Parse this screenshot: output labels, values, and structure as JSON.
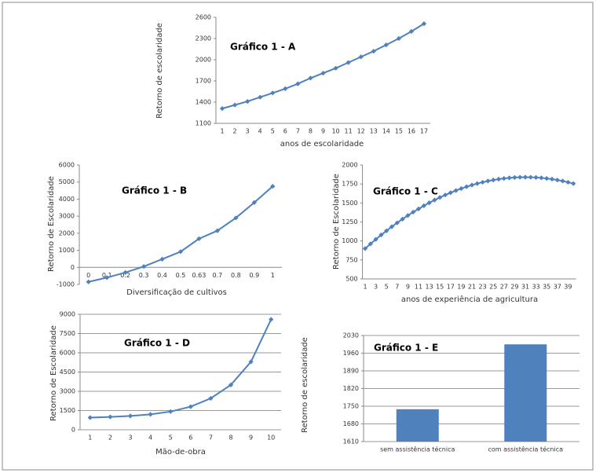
{
  "chart_data": [
    {
      "type": "line",
      "title": "Gráfico 1 - A",
      "y_label": "Retorno de escolaridade",
      "x_label": "anos de escolaridade",
      "categories": [
        "1",
        "2",
        "3",
        "4",
        "5",
        "6",
        "7",
        "8",
        "9",
        "10",
        "11",
        "12",
        "13",
        "14",
        "15",
        "16",
        "17"
      ],
      "values": [
        1310,
        1360,
        1410,
        1470,
        1530,
        1590,
        1660,
        1740,
        1810,
        1880,
        1960,
        2040,
        2120,
        2210,
        2300,
        2400,
        2510
      ],
      "color": "#4f81bd",
      "ylim": [
        1100,
        2600
      ],
      "yticks": [
        1100,
        1400,
        1700,
        2000,
        2300,
        2600
      ],
      "grid": false
    },
    {
      "type": "line",
      "title": "Gráfico 1 - B",
      "y_label": "Retorno de Escolaridade",
      "x_label": "Diversificação de cultivos",
      "categories": [
        "0",
        "0.1",
        "0.2",
        "0.3",
        "0.4",
        "0.5",
        "0.63",
        "0.7",
        "0.8",
        "0.9",
        "1"
      ],
      "values": [
        -850,
        -600,
        -300,
        50,
        480,
        920,
        1680,
        2150,
        2900,
        3800,
        4750
      ],
      "color": "#4f81bd",
      "ylim": [
        -1000,
        6000
      ],
      "yticks": [
        -1000,
        0,
        1000,
        2000,
        3000,
        4000,
        5000,
        6000
      ],
      "grid": false
    },
    {
      "type": "line",
      "title": "Gráfico 1 - C",
      "y_label": "Retorno de Escolaridade",
      "x_label": "anos de experiência de agricultura",
      "categories": [
        "1",
        null,
        "3",
        null,
        "5",
        null,
        "7",
        null,
        "9",
        null,
        "11",
        null,
        "13",
        null,
        "15",
        null,
        "17",
        null,
        "19",
        null,
        "21",
        null,
        "23",
        null,
        "25",
        null,
        "27",
        null,
        "29",
        null,
        "31",
        null,
        "33",
        null,
        "35",
        null,
        "37",
        null,
        "39",
        null
      ],
      "values": [
        900,
        962,
        1021,
        1079,
        1134,
        1188,
        1239,
        1288,
        1335,
        1380,
        1422,
        1463,
        1502,
        1538,
        1573,
        1605,
        1635,
        1664,
        1690,
        1714,
        1736,
        1755,
        1773,
        1789,
        1802,
        1814,
        1823,
        1831,
        1836,
        1839,
        1840,
        1839,
        1836,
        1831,
        1823,
        1814,
        1802,
        1789,
        1773,
        1755
      ],
      "color": "#4f81bd",
      "ylim": [
        500,
        2000
      ],
      "yticks": [
        500,
        750,
        1000,
        1250,
        1500,
        1750,
        2000
      ],
      "grid": false
    },
    {
      "type": "line",
      "title": "Gráfico 1 - D",
      "y_label": "Retorno de Escolaridade",
      "x_label": "Mão-de-obra",
      "categories": [
        "1",
        "2",
        "3",
        "4",
        "5",
        "6",
        "7",
        "8",
        "9",
        "10"
      ],
      "values": [
        950,
        1000,
        1080,
        1200,
        1420,
        1800,
        2450,
        3500,
        5300,
        8600
      ],
      "color": "#4f81bd",
      "ylim": [
        0,
        9000
      ],
      "yticks": [
        0,
        1500,
        3000,
        4500,
        6000,
        7500,
        9000
      ],
      "grid": true
    },
    {
      "type": "bar",
      "title": "Gráfico 1 - E",
      "y_label": "Retorno de escolaridade",
      "categories": [
        "sem assistência técnica",
        "com assistência técnica"
      ],
      "values": [
        1738,
        1995
      ],
      "color": "#4f81bd",
      "ylim": [
        1610,
        2030
      ],
      "yticks": [
        1610,
        1680,
        1750,
        1820,
        1890,
        1960,
        2030
      ],
      "grid": true
    }
  ]
}
